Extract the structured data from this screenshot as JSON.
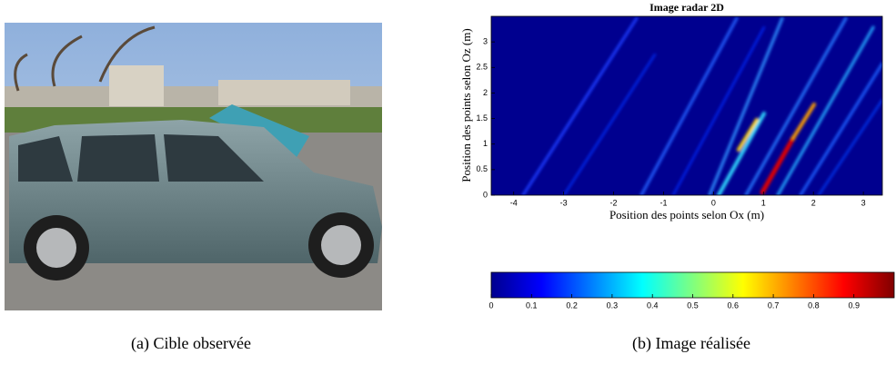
{
  "photo": {
    "caption": "(a) Cible observée"
  },
  "chart_data": {
    "type": "heatmap",
    "title": "Image radar 2D",
    "x_label": "Position des points selon Ox (m)",
    "y_label": "Position des points selon Oz (m)",
    "xlim": [
      -4.45,
      3.38
    ],
    "ylim": [
      0,
      3.5
    ],
    "xticks": [
      -4,
      -3,
      -2,
      -1,
      0,
      1,
      2,
      3
    ],
    "yticks": [
      0,
      0.5,
      1,
      1.5,
      2,
      2.5,
      3
    ],
    "colorbar": {
      "lim": [
        0,
        1
      ],
      "ticks": [
        0,
        0.1,
        0.2,
        0.3,
        0.4,
        0.5,
        0.6,
        0.7,
        0.8,
        0.9
      ]
    },
    "caption": "(b) Image réalisée"
  }
}
